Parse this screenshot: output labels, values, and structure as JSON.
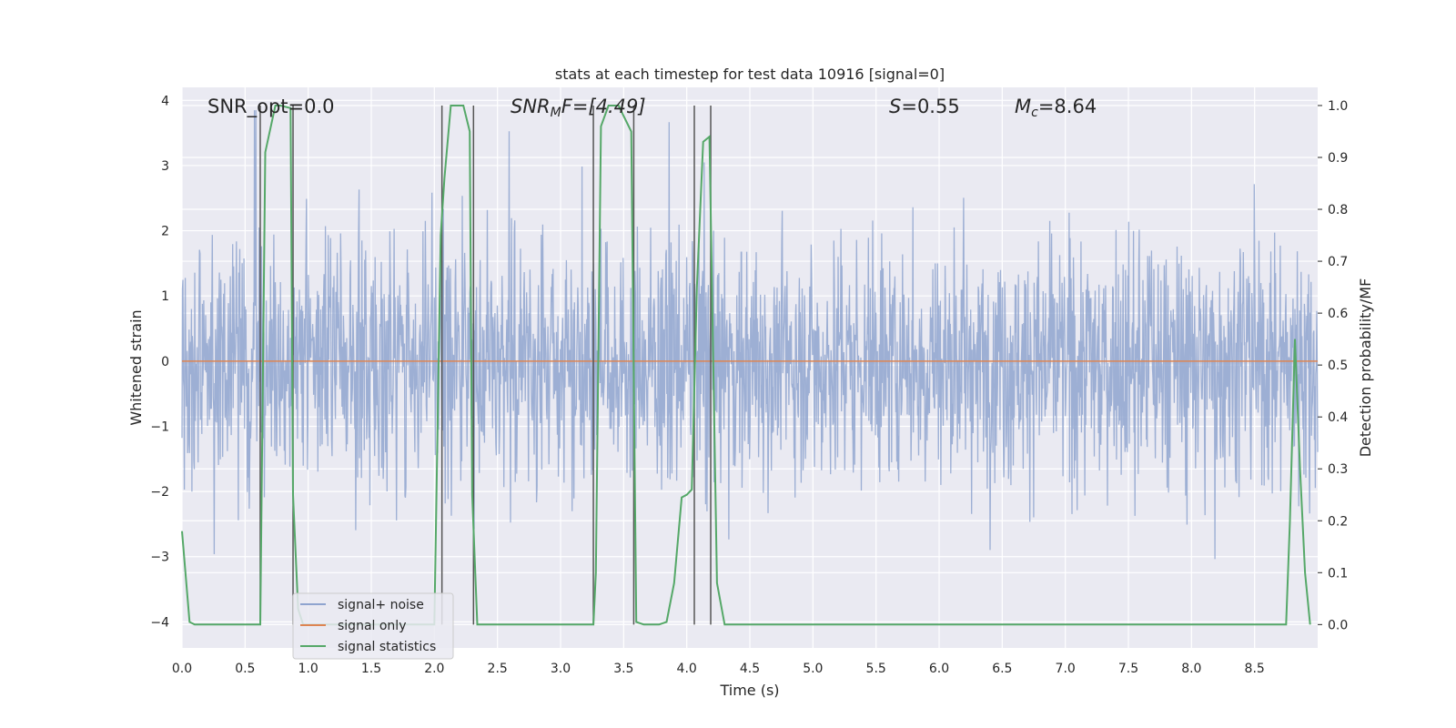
{
  "chart_data": {
    "type": "line",
    "title": "stats at each timestep for test data 10916 [signal=0]",
    "xlabel": "Time (s)",
    "ylabel": "Whitened strain",
    "y2label": "Detection probability/MF",
    "xlim": [
      0.0,
      9.0
    ],
    "ylim": [
      -4.4,
      4.2
    ],
    "y2lim": [
      -0.045,
      1.035
    ],
    "x_ticks": [
      "0.0",
      "0.5",
      "1.0",
      "1.5",
      "2.0",
      "2.5",
      "3.0",
      "3.5",
      "4.0",
      "4.5",
      "5.0",
      "5.5",
      "6.0",
      "6.5",
      "7.0",
      "7.5",
      "8.0",
      "8.5"
    ],
    "y_ticks": [
      "4",
      "3",
      "2",
      "1",
      "0",
      "−1",
      "−2",
      "−3",
      "−4"
    ],
    "y2_ticks": [
      "1.0",
      "0.9",
      "0.8",
      "0.7",
      "0.6",
      "0.5",
      "0.4",
      "0.3",
      "0.2",
      "0.1",
      "0.0"
    ],
    "grid": true,
    "legend_position": "lower-left",
    "annotations": {
      "snr_opt": "SNR_opt=0.0",
      "snr_mf_label": "SNR",
      "snr_mf_sub": "M",
      "snr_mf_tail": "F=[4.49]",
      "s_label": "S",
      "s_value": "=0.55",
      "mc_label": "M",
      "mc_sub": "c",
      "mc_value": "=8.64"
    },
    "series": [
      {
        "name": "signal+ noise",
        "color": "#8fa4cf",
        "description_values": "dense whitened noise roughly within -4 to 4, envelope about ±1.6"
      },
      {
        "name": "signal only",
        "color": "#dd8452",
        "x": [
          0.0,
          9.0
        ],
        "y": [
          0.0,
          0.0
        ]
      },
      {
        "name": "signal statistics",
        "color": "#55a868",
        "axis": "right",
        "x": [
          0.0,
          0.06,
          0.1,
          0.2,
          0.62,
          0.66,
          0.74,
          0.78,
          0.86,
          0.88,
          0.92,
          0.96,
          1.0,
          2.0,
          2.05,
          2.08,
          2.13,
          2.23,
          2.28,
          2.3,
          2.34,
          2.4,
          3.26,
          3.28,
          3.32,
          3.38,
          3.46,
          3.5,
          3.56,
          3.6,
          3.66,
          3.72,
          3.78,
          3.84,
          3.9,
          3.96,
          4.0,
          4.04,
          4.08,
          4.13,
          4.18,
          4.24,
          4.3,
          4.6,
          8.75,
          8.78,
          8.82,
          8.86,
          8.9,
          8.94
        ],
        "y": [
          0.18,
          0.005,
          0.0,
          0.0,
          0.0,
          0.91,
          1.0,
          1.0,
          0.995,
          0.25,
          0.03,
          0.0,
          0.0,
          0.0,
          0.75,
          0.86,
          1.0,
          1.0,
          0.95,
          0.25,
          0.0,
          0.0,
          0.0,
          0.1,
          0.96,
          1.0,
          1.0,
          0.98,
          0.95,
          0.005,
          0.0,
          0.0,
          0.0,
          0.005,
          0.08,
          0.245,
          0.25,
          0.26,
          0.65,
          0.93,
          0.94,
          0.08,
          0.0,
          0.0,
          0.0,
          0.2,
          0.55,
          0.3,
          0.1,
          0.0
        ]
      }
    ],
    "vertical_markers_x": [
      0.62,
      0.88,
      2.06,
      2.31,
      3.26,
      3.58,
      4.06,
      4.19
    ]
  }
}
